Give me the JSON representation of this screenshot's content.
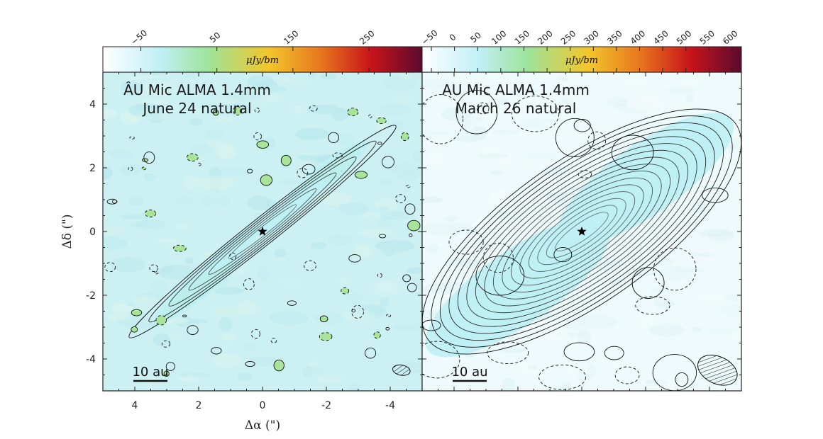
{
  "chart_data": [
    {
      "type": "heatmap",
      "panel": "left",
      "title_lines": [
        "ÂU Mic ALMA 1.4mm",
        "June 24 natural"
      ],
      "xlabel": "Δα (\")",
      "ylabel": "Δδ (\")",
      "xlim": [
        5,
        -5
      ],
      "ylim": [
        -5,
        5
      ],
      "x_ticks": [
        4,
        2,
        0,
        -2,
        -4
      ],
      "y_ticks": [
        4,
        2,
        0,
        -2,
        -4
      ],
      "colorbar": {
        "unit": "μJy/bm",
        "range": [
          -100,
          320
        ],
        "tick_labels": [
          "−50",
          "50",
          "150",
          "250"
        ],
        "tick_values": [
          -50,
          50,
          150,
          250
        ]
      },
      "disk": {
        "pa_deg": 128.5,
        "peaks": [
          {
            "x": 2.0,
            "y": -1.75,
            "level": 1.0
          },
          {
            "x": -2.0,
            "y": 1.8,
            "level": 0.92
          },
          {
            "x": 1.0,
            "y": -0.6,
            "level": 0.6
          },
          {
            "x": -1.2,
            "y": 1.0,
            "level": 0.55
          },
          {
            "x": -0.6,
            "y": 0.5,
            "level": 0.5
          }
        ],
        "star": {
          "x": 0,
          "y": 0
        }
      },
      "scale_bar_label": "10 au",
      "beam": {
        "x": -4.35,
        "y": -4.35,
        "major": 0.55,
        "minor": 0.32,
        "pa_deg": 80
      }
    },
    {
      "type": "heatmap",
      "panel": "right",
      "title_lines": [
        "AU Mic ALMA 1.4mm",
        "March 26 natural"
      ],
      "xlim": [
        5,
        -5
      ],
      "ylim": [
        -5,
        5
      ],
      "colorbar": {
        "unit": "μJy/bm",
        "range": [
          -70,
          620
        ],
        "tick_labels": [
          "−50",
          "0",
          "50",
          "100",
          "150",
          "200",
          "250",
          "300",
          "350",
          "400",
          "450",
          "500",
          "550",
          "600"
        ],
        "tick_values": [
          -50,
          0,
          50,
          100,
          150,
          200,
          250,
          300,
          350,
          400,
          450,
          500,
          550,
          600
        ]
      },
      "disk": {
        "pa_deg": 128.5,
        "peaks": [
          {
            "x": 2.0,
            "y": -1.75,
            "level": 1.0
          },
          {
            "x": -2.0,
            "y": 1.65,
            "level": 0.95
          }
        ],
        "star": {
          "x": 0,
          "y": 0
        }
      },
      "scale_bar_label": "10 au",
      "beam": {
        "x": -4.25,
        "y": -4.35,
        "major": 1.3,
        "minor": 0.85,
        "pa_deg": 65
      }
    }
  ],
  "colormap": [
    "#ffffff",
    "#bfeff5",
    "#9de49a",
    "#f2c62b",
    "#e8781e",
    "#c8141a",
    "#5a0a2e"
  ]
}
